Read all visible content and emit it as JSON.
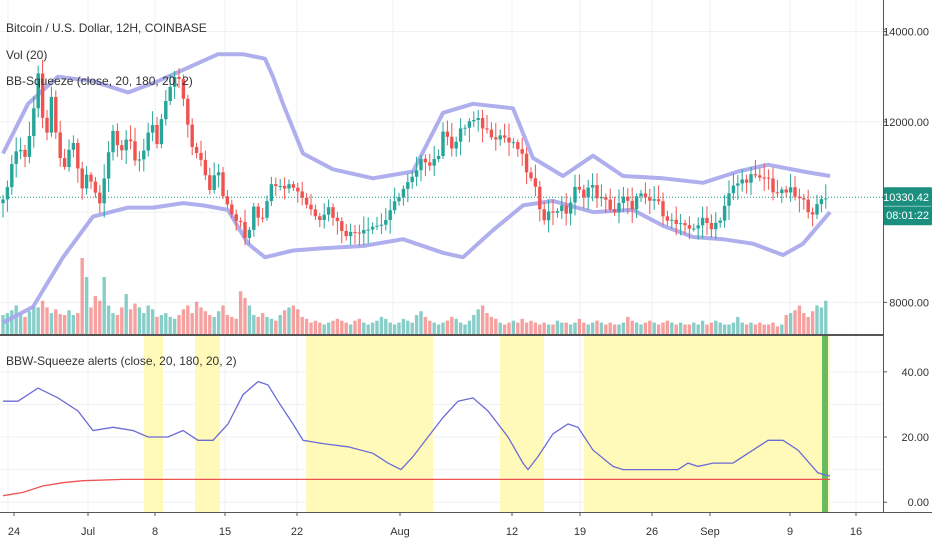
{
  "legend": {
    "main_title": "Bitcoin / U.S. Dollar, 12H, COINBASE",
    "volume": "Vol (20)",
    "bb_squeeze": "BB-Squeeze (close, 20, 180, 20, 2)",
    "bbw_alerts": "BBW-Squeeze alerts (close, 20, 180, 20, 2)"
  },
  "colors": {
    "grid": "#eef1f4",
    "up": "#26a69a",
    "down": "#ef5350",
    "band": "#a6a6ec",
    "bbw_line": "#6b6bd6",
    "threshold": "#ef5350",
    "squeeze_fill": "#fffaba",
    "alert_bar": "#4caf50",
    "price_line": "#0f8f7f",
    "price_tag_bg": "#1b8f7f",
    "axis": "#333333"
  },
  "price_tag": {
    "price": "10330.42",
    "countdown": "08:01:22"
  },
  "chart_data": [
    {
      "type": "candlestick",
      "title": "Bitcoin / U.S. Dollar, 12H, COINBASE",
      "ylim": [
        7300,
        14700
      ],
      "y_ticks": [
        8000,
        12000,
        14000
      ],
      "y_tick_labels": [
        "8000.00",
        "12000.00",
        "14000.00"
      ],
      "x_tick_labels": [
        "24",
        "Jul",
        "8",
        "15",
        "22",
        "Aug",
        "12",
        "19",
        "26",
        "Sep",
        "9",
        "16"
      ],
      "last_price": 10330.42,
      "close_path": [
        [
          0,
          10200
        ],
        [
          8,
          11000
        ],
        [
          15,
          11500
        ],
        [
          22,
          11200
        ],
        [
          30,
          12200
        ],
        [
          36,
          13200
        ],
        [
          42,
          11200
        ],
        [
          48,
          12700
        ],
        [
          55,
          11200
        ],
        [
          62,
          11000
        ],
        [
          70,
          11600
        ],
        [
          78,
          10500
        ],
        [
          84,
          10800
        ],
        [
          90,
          10600
        ],
        [
          96,
          10100
        ],
        [
          104,
          11200
        ],
        [
          110,
          11800
        ],
        [
          118,
          11400
        ],
        [
          125,
          11700
        ],
        [
          132,
          11100
        ],
        [
          140,
          11300
        ],
        [
          148,
          12100
        ],
        [
          155,
          11300
        ],
        [
          160,
          12300
        ],
        [
          165,
          12600
        ],
        [
          172,
          13000
        ],
        [
          178,
          12800
        ],
        [
          184,
          12100
        ],
        [
          190,
          11300
        ],
        [
          198,
          11200
        ],
        [
          206,
          10500
        ],
        [
          214,
          11100
        ],
        [
          222,
          10200
        ],
        [
          230,
          9900
        ],
        [
          238,
          9700
        ],
        [
          244,
          9300
        ],
        [
          250,
          10200
        ],
        [
          258,
          9800
        ],
        [
          266,
          10500
        ],
        [
          274,
          10700
        ],
        [
          282,
          10600
        ],
        [
          290,
          10600
        ],
        [
          298,
          10400
        ],
        [
          306,
          10100
        ],
        [
          316,
          9900
        ],
        [
          326,
          10100
        ],
        [
          336,
          9700
        ],
        [
          346,
          9500
        ],
        [
          356,
          9600
        ],
        [
          366,
          9700
        ],
        [
          376,
          9700
        ],
        [
          386,
          9900
        ],
        [
          396,
          10400
        ],
        [
          404,
          10600
        ],
        [
          412,
          10800
        ],
        [
          420,
          11200
        ],
        [
          428,
          11100
        ],
        [
          436,
          11300
        ],
        [
          442,
          11900
        ],
        [
          450,
          11400
        ],
        [
          458,
          11800
        ],
        [
          466,
          12000
        ],
        [
          476,
          12000
        ],
        [
          484,
          11800
        ],
        [
          492,
          11700
        ],
        [
          500,
          11700
        ],
        [
          508,
          11500
        ],
        [
          516,
          11400
        ],
        [
          524,
          10900
        ],
        [
          532,
          10500
        ],
        [
          540,
          9900
        ],
        [
          548,
          10000
        ],
        [
          556,
          10100
        ],
        [
          564,
          10000
        ],
        [
          572,
          10500
        ],
        [
          580,
          10400
        ],
        [
          588,
          10600
        ],
        [
          596,
          10300
        ],
        [
          604,
          10200
        ],
        [
          612,
          10000
        ],
        [
          620,
          10300
        ],
        [
          628,
          10100
        ],
        [
          636,
          10400
        ],
        [
          644,
          10200
        ],
        [
          652,
          10300
        ],
        [
          660,
          10000
        ],
        [
          668,
          9800
        ],
        [
          676,
          9700
        ],
        [
          684,
          9600
        ],
        [
          692,
          9700
        ],
        [
          700,
          9800
        ],
        [
          708,
          9700
        ],
        [
          716,
          9800
        ],
        [
          724,
          10300
        ],
        [
          732,
          10600
        ],
        [
          740,
          10700
        ],
        [
          748,
          10800
        ],
        [
          756,
          10700
        ],
        [
          764,
          10800
        ],
        [
          770,
          10500
        ],
        [
          778,
          10400
        ],
        [
          786,
          10500
        ],
        [
          794,
          10300
        ],
        [
          802,
          10200
        ],
        [
          808,
          10000
        ],
        [
          814,
          10100
        ],
        [
          820,
          10300
        ],
        [
          827,
          10330
        ]
      ],
      "bb_upper": [
        [
          0,
          11300
        ],
        [
          25,
          12400
        ],
        [
          55,
          13000
        ],
        [
          90,
          12900
        ],
        [
          125,
          12650
        ],
        [
          155,
          12900
        ],
        [
          185,
          13200
        ],
        [
          215,
          13500
        ],
        [
          240,
          13500
        ],
        [
          262,
          13400
        ],
        [
          270,
          13000
        ],
        [
          280,
          12400
        ],
        [
          300,
          11300
        ],
        [
          330,
          10950
        ],
        [
          370,
          10750
        ],
        [
          410,
          10900
        ],
        [
          440,
          12200
        ],
        [
          470,
          12400
        ],
        [
          510,
          12300
        ],
        [
          530,
          11200
        ],
        [
          560,
          10800
        ],
        [
          590,
          11250
        ],
        [
          620,
          10800
        ],
        [
          660,
          10750
        ],
        [
          700,
          10650
        ],
        [
          735,
          10900
        ],
        [
          765,
          11050
        ],
        [
          800,
          10900
        ],
        [
          827,
          10800
        ]
      ],
      "bb_lower": [
        [
          0,
          7550
        ],
        [
          30,
          7900
        ],
        [
          60,
          9000
        ],
        [
          90,
          9900
        ],
        [
          125,
          10100
        ],
        [
          150,
          10100
        ],
        [
          180,
          10200
        ],
        [
          200,
          10150
        ],
        [
          225,
          10050
        ],
        [
          245,
          9300
        ],
        [
          262,
          9000
        ],
        [
          290,
          9150
        ],
        [
          320,
          9200
        ],
        [
          360,
          9250
        ],
        [
          400,
          9400
        ],
        [
          440,
          9100
        ],
        [
          460,
          9000
        ],
        [
          490,
          9600
        ],
        [
          520,
          10150
        ],
        [
          550,
          10250
        ],
        [
          590,
          10000
        ],
        [
          630,
          10050
        ],
        [
          660,
          9700
        ],
        [
          690,
          9450
        ],
        [
          720,
          9400
        ],
        [
          750,
          9300
        ],
        [
          780,
          9050
        ],
        [
          800,
          9300
        ],
        [
          827,
          10000
        ]
      ]
    },
    {
      "type": "bar",
      "title": "Vol (20)",
      "values_relative": [
        0.2,
        0.22,
        0.25,
        0.3,
        0.22,
        0.18,
        0.24,
        0.3,
        0.28,
        0.35,
        0.28,
        0.22,
        0.26,
        0.21,
        0.2,
        0.25,
        0.2,
        0.22,
        0.8,
        0.6,
        0.28,
        0.4,
        0.35,
        0.6,
        0.3,
        0.22,
        0.2,
        0.28,
        0.42,
        0.26,
        0.32,
        0.28,
        0.22,
        0.3,
        0.26,
        0.18,
        0.2,
        0.22,
        0.18,
        0.16,
        0.2,
        0.26,
        0.3,
        0.22,
        0.34,
        0.28,
        0.24,
        0.2,
        0.18,
        0.24,
        0.3,
        0.2,
        0.18,
        0.16,
        0.45,
        0.38,
        0.3,
        0.2,
        0.18,
        0.22,
        0.18,
        0.16,
        0.14,
        0.2,
        0.25,
        0.28,
        0.3,
        0.26,
        0.18,
        0.16,
        0.12,
        0.14,
        0.12,
        0.1,
        0.12,
        0.14,
        0.16,
        0.14,
        0.12,
        0.1,
        0.14,
        0.16,
        0.12,
        0.1,
        0.12,
        0.14,
        0.18,
        0.16,
        0.12,
        0.1,
        0.12,
        0.16,
        0.14,
        0.12,
        0.2,
        0.24,
        0.18,
        0.14,
        0.12,
        0.1,
        0.12,
        0.14,
        0.18,
        0.16,
        0.12,
        0.1,
        0.14,
        0.2,
        0.26,
        0.3,
        0.22,
        0.18,
        0.16,
        0.12,
        0.1,
        0.12,
        0.14,
        0.12,
        0.16,
        0.12,
        0.14,
        0.12,
        0.1,
        0.12,
        0.1,
        0.1,
        0.14,
        0.12,
        0.12,
        0.1,
        0.12,
        0.16,
        0.12,
        0.1,
        0.12,
        0.14,
        0.12,
        0.1,
        0.12,
        0.1,
        0.1,
        0.12,
        0.18,
        0.14,
        0.12,
        0.1,
        0.12,
        0.14,
        0.12,
        0.1,
        0.12,
        0.14,
        0.12,
        0.1,
        0.12,
        0.1,
        0.1,
        0.12,
        0.1,
        0.14,
        0.1,
        0.12,
        0.14,
        0.12,
        0.1,
        0.1,
        0.12,
        0.18,
        0.12,
        0.1,
        0.12,
        0.1,
        0.12,
        0.1,
        0.1,
        0.12,
        0.08,
        0.1
      ]
    },
    {
      "type": "line",
      "title": "BBW-Squeeze alerts (close, 20, 180, 20, 2)",
      "ylim": [
        -3,
        51
      ],
      "y_ticks": [
        0,
        20,
        40
      ],
      "y_tick_labels": [
        "0.00",
        "20.00",
        "40.00"
      ],
      "series": [
        {
          "name": "BBW",
          "points": [
            [
              0,
              31
            ],
            [
              15,
              31
            ],
            [
              35,
              35
            ],
            [
              55,
              32
            ],
            [
              75,
              28
            ],
            [
              90,
              22
            ],
            [
              110,
              23
            ],
            [
              130,
              22
            ],
            [
              145,
              20
            ],
            [
              165,
              20
            ],
            [
              180,
              22
            ],
            [
              195,
              19
            ],
            [
              210,
              19
            ],
            [
              225,
              24
            ],
            [
              240,
              33
            ],
            [
              255,
              37
            ],
            [
              265,
              36
            ],
            [
              275,
              31
            ],
            [
              290,
              24
            ],
            [
              300,
              19
            ],
            [
              320,
              18
            ],
            [
              345,
              17
            ],
            [
              370,
              15
            ],
            [
              385,
              12
            ],
            [
              398,
              10
            ],
            [
              410,
              14
            ],
            [
              425,
              20
            ],
            [
              440,
              26
            ],
            [
              455,
              31
            ],
            [
              470,
              32
            ],
            [
              485,
              28
            ],
            [
              505,
              20
            ],
            [
              520,
              12
            ],
            [
              525,
              10
            ],
            [
              535,
              14
            ],
            [
              550,
              21
            ],
            [
              565,
              24
            ],
            [
              575,
              23
            ],
            [
              590,
              16
            ],
            [
              610,
              11
            ],
            [
              620,
              10
            ],
            [
              640,
              10
            ],
            [
              660,
              10
            ],
            [
              675,
              10
            ],
            [
              685,
              12
            ],
            [
              695,
              11
            ],
            [
              710,
              12
            ],
            [
              730,
              12
            ],
            [
              750,
              16
            ],
            [
              765,
              19
            ],
            [
              780,
              19
            ],
            [
              795,
              16
            ],
            [
              815,
              9
            ],
            [
              827,
              8
            ]
          ]
        },
        {
          "name": "Threshold",
          "points": [
            [
              0,
              2
            ],
            [
              20,
              3
            ],
            [
              40,
              5
            ],
            [
              60,
              6
            ],
            [
              80,
              6.6
            ],
            [
              120,
              7
            ],
            [
              200,
              7
            ],
            [
              300,
              7
            ],
            [
              500,
              7
            ],
            [
              700,
              7
            ],
            [
              827,
              7
            ]
          ]
        }
      ],
      "squeeze_periods": [
        [
          141,
          160
        ],
        [
          192,
          217
        ],
        [
          303,
          430
        ],
        [
          497,
          541
        ],
        [
          581,
          827
        ]
      ],
      "alert_at": 822
    }
  ]
}
